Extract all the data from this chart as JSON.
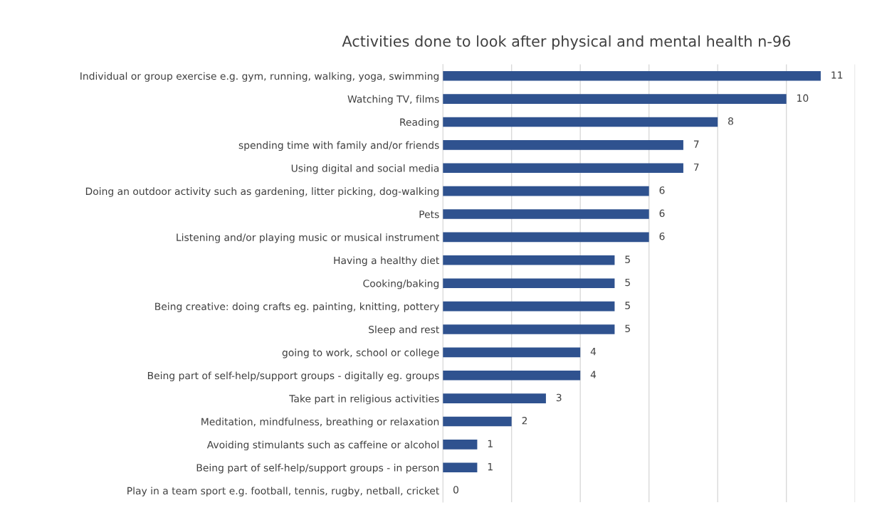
{
  "chart_data": {
    "type": "bar",
    "orientation": "horizontal",
    "title": "Activities done to look after physical and mental health n-96",
    "categories": [
      "Individual or group exercise e.g. gym, running, walking, yoga, swimming",
      "Watching TV, films",
      "Reading",
      "spending time with family and/or friends",
      "Using digital and social media",
      "Doing an outdoor activity such as gardening, litter picking, dog-walking",
      "Pets",
      "Listening and/or playing music or musical instrument",
      "Having a healthy diet",
      "Cooking/baking",
      "Being creative: doing crafts eg. painting, knitting, pottery",
      "Sleep and rest",
      "going to work, school or college",
      "Being part of self-help/support groups - digitally eg. groups",
      "Take part in religious activities",
      "Meditation, mindfulness, breathing or relaxation",
      "Avoiding stimulants such as caffeine or alcohol",
      "Being part of self-help/support groups - in person",
      "Play in a team sport e.g. football, tennis, rugby, netball, cricket"
    ],
    "values": [
      11,
      10,
      8,
      7,
      7,
      6,
      6,
      6,
      5,
      5,
      5,
      5,
      4,
      4,
      3,
      2,
      1,
      1,
      0
    ],
    "color": "#2f528f",
    "xlim": [
      0,
      12
    ],
    "xticks": [
      {
        "value": 0,
        "label": null
      },
      {
        "value": 2,
        "label": null
      },
      {
        "value": 4,
        "label": null
      },
      {
        "value": 6,
        "label": null
      },
      {
        "value": 8,
        "label": null
      },
      {
        "value": 10,
        "label": null
      },
      {
        "value": 12,
        "label": null
      }
    ],
    "grid": "x",
    "data_labels": true,
    "tick_labels": "y"
  }
}
